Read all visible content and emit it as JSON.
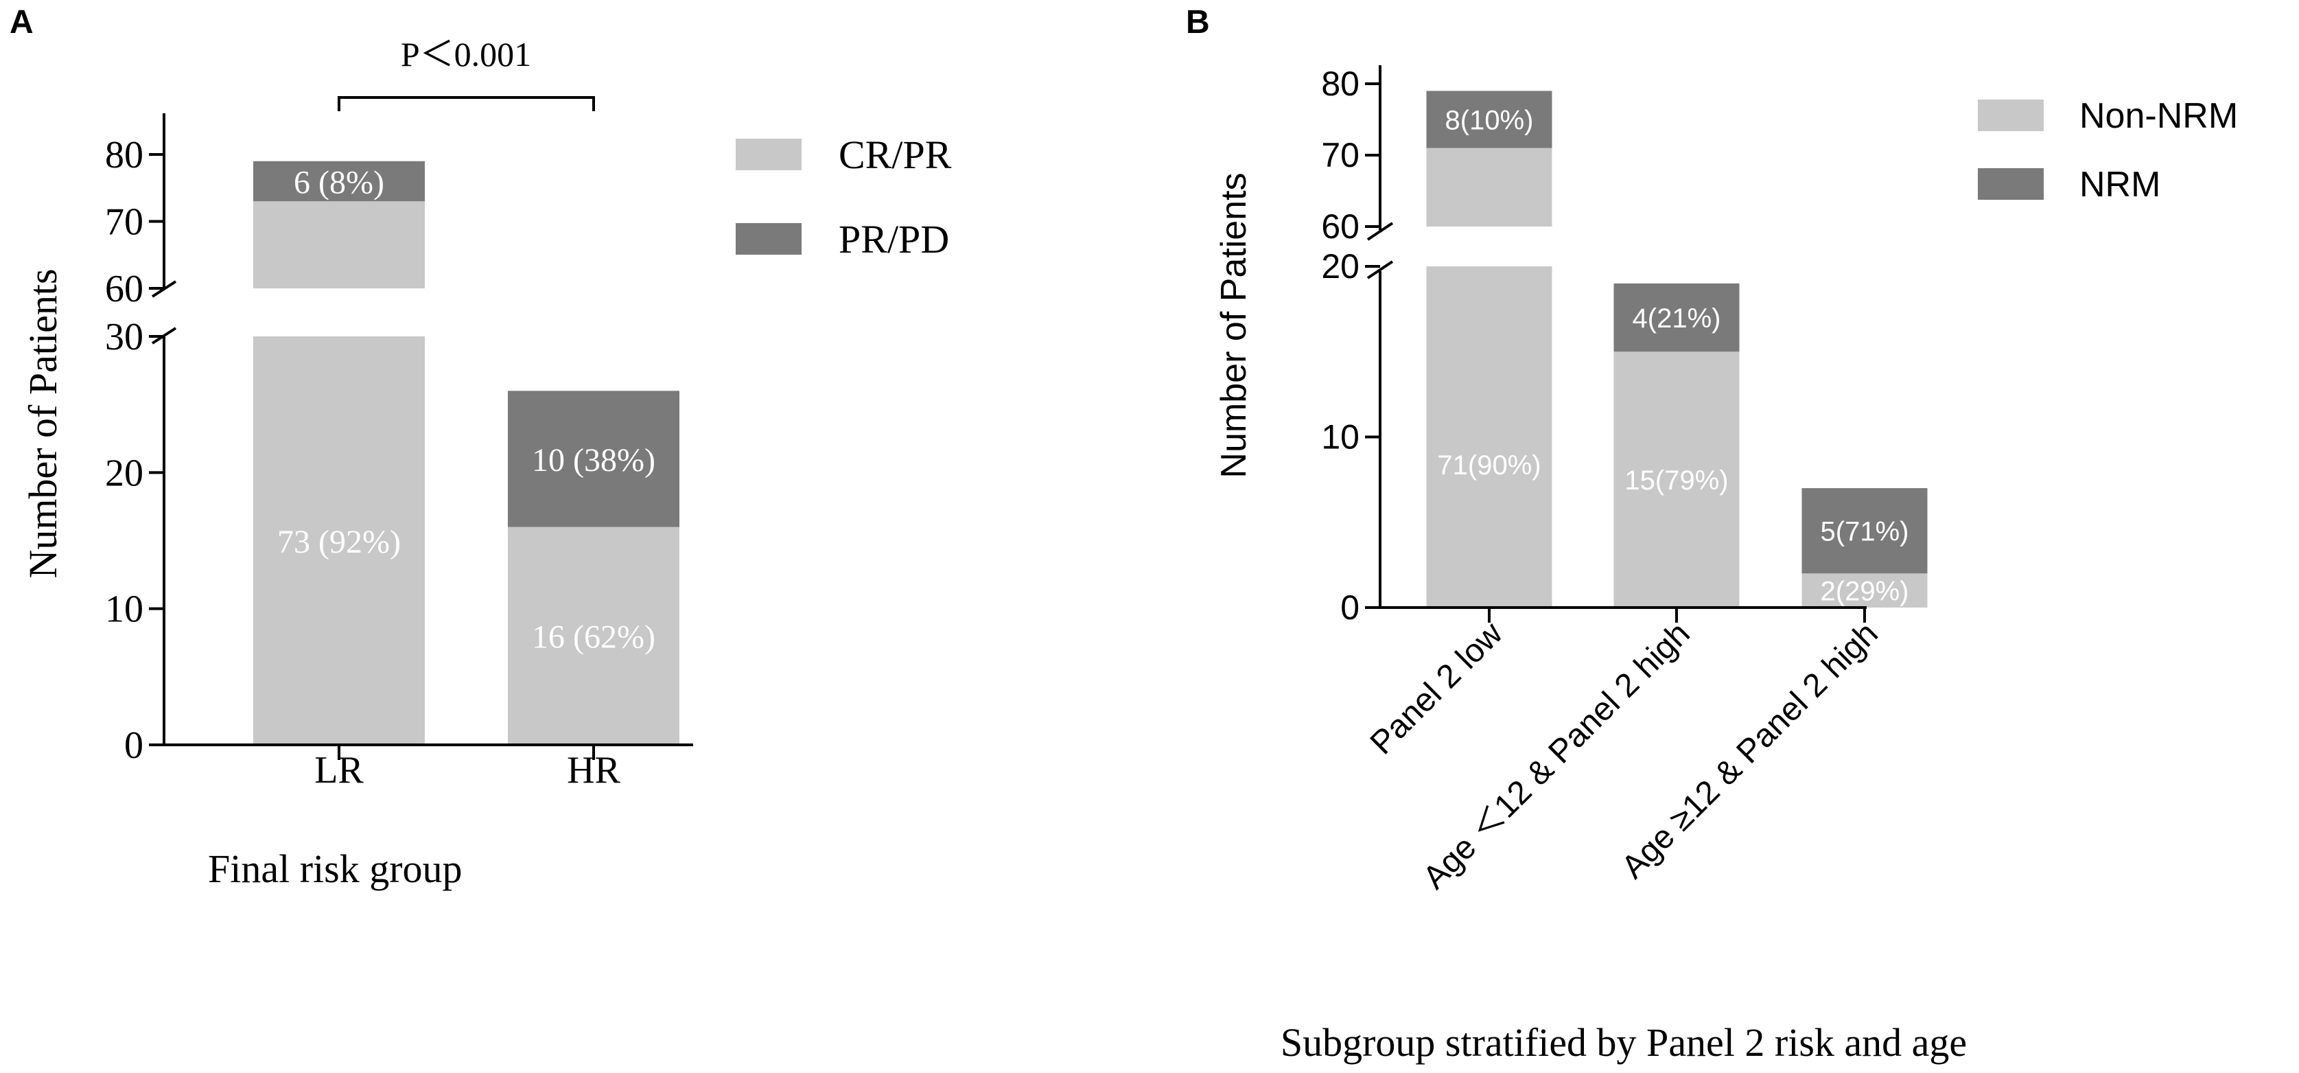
{
  "colors": {
    "light": "#c8c8c8",
    "dark": "#7a7a7a",
    "axis": "#000000",
    "bar_label": "#ffffff"
  },
  "chart_data": [
    {
      "panel": "A",
      "type": "bar",
      "stacked": true,
      "broken_axis": true,
      "categories": [
        "LR",
        "HR"
      ],
      "series": [
        {
          "name": "CR/PR",
          "values": [
            73,
            16
          ],
          "labels": [
            "73 (92%)",
            "16 (62%)"
          ],
          "color": "#c8c8c8"
        },
        {
          "name": "PR/PD",
          "values": [
            6,
            10
          ],
          "labels": [
            "6 (8%)",
            "10 (38%)"
          ],
          "color": "#7a7a7a"
        }
      ],
      "xlabel": "Final risk group",
      "ylabel": "Number of Patients",
      "lower_segment": {
        "range": [
          0,
          30
        ],
        "ticks": [
          "0",
          "10",
          "20",
          "30"
        ]
      },
      "upper_segment": {
        "range": [
          60,
          85
        ],
        "ticks": [
          "60",
          "70",
          "80"
        ]
      },
      "annotation": "P＜0.001",
      "legend": "right"
    },
    {
      "panel": "B",
      "type": "bar",
      "stacked": true,
      "broken_axis": true,
      "categories": [
        "Panel 2 low",
        "Age ＜12 & Panel 2 high",
        "Age ≥12 & Panel 2 high"
      ],
      "series": [
        {
          "name": "Non-NRM",
          "values": [
            71,
            15,
            2
          ],
          "labels": [
            "71(90%)",
            "15(79%)",
            "2(29%)"
          ],
          "color": "#c8c8c8"
        },
        {
          "name": "NRM",
          "values": [
            8,
            4,
            5
          ],
          "labels": [
            "8(10%)",
            "4(21%)",
            "5(71%)"
          ],
          "color": "#7a7a7a"
        }
      ],
      "xlabel": "Subgroup stratified by Panel 2 risk and age",
      "ylabel": "Number of Patients",
      "lower_segment": {
        "range": [
          0,
          20
        ],
        "ticks": [
          "0",
          "10",
          "20"
        ]
      },
      "upper_segment": {
        "range": [
          60,
          80
        ],
        "ticks": [
          "60",
          "70",
          "80"
        ]
      },
      "legend": "right"
    }
  ]
}
